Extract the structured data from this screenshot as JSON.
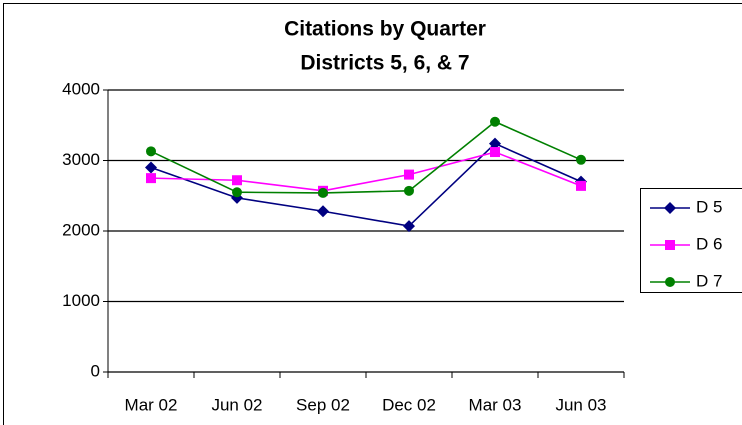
{
  "chart_data": {
    "type": "line",
    "title": "Citations by Quarter",
    "subtitle": "Districts 5, 6, & 7",
    "categories": [
      "Mar 02",
      "Jun 02",
      "Sep 02",
      "Dec 02",
      "Mar 03",
      "Jun 03"
    ],
    "series": [
      {
        "name": "D 5",
        "color": "#000080",
        "marker": "diamond",
        "values": [
          2900,
          2470,
          2280,
          2070,
          3240,
          2700
        ]
      },
      {
        "name": "D 6",
        "color": "#ff00ff",
        "marker": "square",
        "values": [
          2750,
          2720,
          2570,
          2800,
          3120,
          2640
        ]
      },
      {
        "name": "D 7",
        "color": "#008000",
        "marker": "circle",
        "values": [
          3130,
          2550,
          2540,
          2570,
          3550,
          3010
        ]
      }
    ],
    "ylim": [
      0,
      4000
    ],
    "yticks": [
      0,
      1000,
      2000,
      3000,
      4000
    ],
    "grid": true,
    "legend": "right"
  }
}
